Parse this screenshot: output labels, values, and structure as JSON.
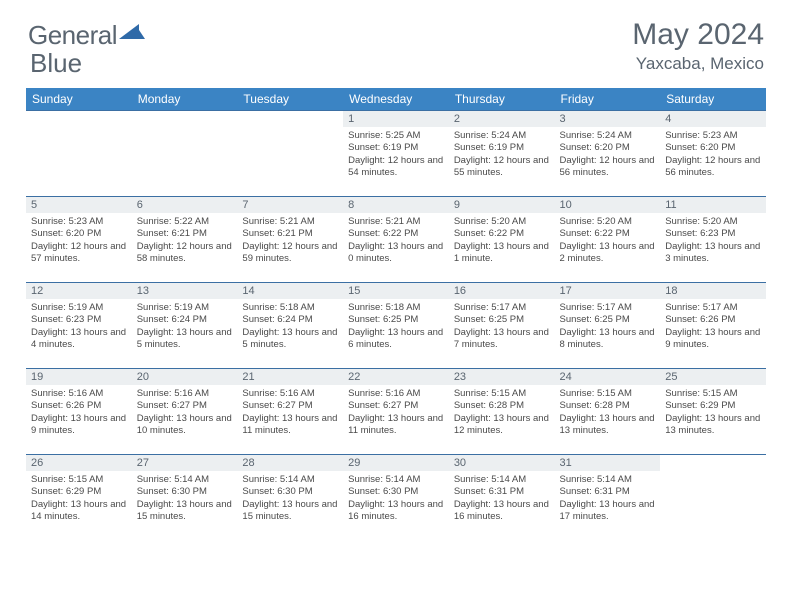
{
  "brand": {
    "name_a": "General",
    "name_b": "Blue"
  },
  "title": "May 2024",
  "location": "Yaxcaba, Mexico",
  "weekdays": [
    "Sunday",
    "Monday",
    "Tuesday",
    "Wednesday",
    "Thursday",
    "Friday",
    "Saturday"
  ],
  "header_bg": "#3b84c4",
  "cell_border": "#3b6fa3",
  "daynum_bg": "#eceff1",
  "days": [
    {
      "n": "",
      "t": ""
    },
    {
      "n": "",
      "t": ""
    },
    {
      "n": "",
      "t": ""
    },
    {
      "n": "1",
      "t": "Sunrise: 5:25 AM\nSunset: 6:19 PM\nDaylight: 12 hours and 54 minutes."
    },
    {
      "n": "2",
      "t": "Sunrise: 5:24 AM\nSunset: 6:19 PM\nDaylight: 12 hours and 55 minutes."
    },
    {
      "n": "3",
      "t": "Sunrise: 5:24 AM\nSunset: 6:20 PM\nDaylight: 12 hours and 56 minutes."
    },
    {
      "n": "4",
      "t": "Sunrise: 5:23 AM\nSunset: 6:20 PM\nDaylight: 12 hours and 56 minutes."
    },
    {
      "n": "5",
      "t": "Sunrise: 5:23 AM\nSunset: 6:20 PM\nDaylight: 12 hours and 57 minutes."
    },
    {
      "n": "6",
      "t": "Sunrise: 5:22 AM\nSunset: 6:21 PM\nDaylight: 12 hours and 58 minutes."
    },
    {
      "n": "7",
      "t": "Sunrise: 5:21 AM\nSunset: 6:21 PM\nDaylight: 12 hours and 59 minutes."
    },
    {
      "n": "8",
      "t": "Sunrise: 5:21 AM\nSunset: 6:22 PM\nDaylight: 13 hours and 0 minutes."
    },
    {
      "n": "9",
      "t": "Sunrise: 5:20 AM\nSunset: 6:22 PM\nDaylight: 13 hours and 1 minute."
    },
    {
      "n": "10",
      "t": "Sunrise: 5:20 AM\nSunset: 6:22 PM\nDaylight: 13 hours and 2 minutes."
    },
    {
      "n": "11",
      "t": "Sunrise: 5:20 AM\nSunset: 6:23 PM\nDaylight: 13 hours and 3 minutes."
    },
    {
      "n": "12",
      "t": "Sunrise: 5:19 AM\nSunset: 6:23 PM\nDaylight: 13 hours and 4 minutes."
    },
    {
      "n": "13",
      "t": "Sunrise: 5:19 AM\nSunset: 6:24 PM\nDaylight: 13 hours and 5 minutes."
    },
    {
      "n": "14",
      "t": "Sunrise: 5:18 AM\nSunset: 6:24 PM\nDaylight: 13 hours and 5 minutes."
    },
    {
      "n": "15",
      "t": "Sunrise: 5:18 AM\nSunset: 6:25 PM\nDaylight: 13 hours and 6 minutes."
    },
    {
      "n": "16",
      "t": "Sunrise: 5:17 AM\nSunset: 6:25 PM\nDaylight: 13 hours and 7 minutes."
    },
    {
      "n": "17",
      "t": "Sunrise: 5:17 AM\nSunset: 6:25 PM\nDaylight: 13 hours and 8 minutes."
    },
    {
      "n": "18",
      "t": "Sunrise: 5:17 AM\nSunset: 6:26 PM\nDaylight: 13 hours and 9 minutes."
    },
    {
      "n": "19",
      "t": "Sunrise: 5:16 AM\nSunset: 6:26 PM\nDaylight: 13 hours and 9 minutes."
    },
    {
      "n": "20",
      "t": "Sunrise: 5:16 AM\nSunset: 6:27 PM\nDaylight: 13 hours and 10 minutes."
    },
    {
      "n": "21",
      "t": "Sunrise: 5:16 AM\nSunset: 6:27 PM\nDaylight: 13 hours and 11 minutes."
    },
    {
      "n": "22",
      "t": "Sunrise: 5:16 AM\nSunset: 6:27 PM\nDaylight: 13 hours and 11 minutes."
    },
    {
      "n": "23",
      "t": "Sunrise: 5:15 AM\nSunset: 6:28 PM\nDaylight: 13 hours and 12 minutes."
    },
    {
      "n": "24",
      "t": "Sunrise: 5:15 AM\nSunset: 6:28 PM\nDaylight: 13 hours and 13 minutes."
    },
    {
      "n": "25",
      "t": "Sunrise: 5:15 AM\nSunset: 6:29 PM\nDaylight: 13 hours and 13 minutes."
    },
    {
      "n": "26",
      "t": "Sunrise: 5:15 AM\nSunset: 6:29 PM\nDaylight: 13 hours and 14 minutes."
    },
    {
      "n": "27",
      "t": "Sunrise: 5:14 AM\nSunset: 6:30 PM\nDaylight: 13 hours and 15 minutes."
    },
    {
      "n": "28",
      "t": "Sunrise: 5:14 AM\nSunset: 6:30 PM\nDaylight: 13 hours and 15 minutes."
    },
    {
      "n": "29",
      "t": "Sunrise: 5:14 AM\nSunset: 6:30 PM\nDaylight: 13 hours and 16 minutes."
    },
    {
      "n": "30",
      "t": "Sunrise: 5:14 AM\nSunset: 6:31 PM\nDaylight: 13 hours and 16 minutes."
    },
    {
      "n": "31",
      "t": "Sunrise: 5:14 AM\nSunset: 6:31 PM\nDaylight: 13 hours and 17 minutes."
    },
    {
      "n": "",
      "t": ""
    }
  ]
}
